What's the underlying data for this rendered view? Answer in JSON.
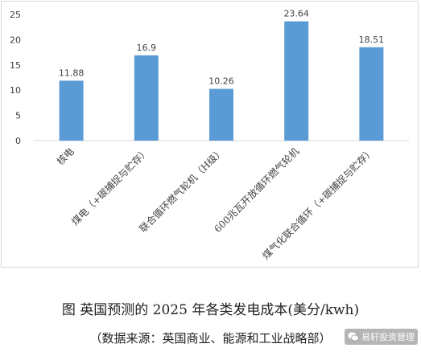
{
  "chart_data": {
    "type": "bar",
    "categories": [
      "核电",
      "煤电（+碳捕捉与贮存）",
      "联合循环燃气轮机（H级）",
      "600兆瓦开放循环燃气轮机",
      "煤气化联合循环（+碳捕捉与贮存）"
    ],
    "values": [
      11.88,
      16.9,
      10.26,
      23.64,
      18.51
    ],
    "value_labels": [
      "11.88",
      "16.9",
      "10.26",
      "23.64",
      "18.51"
    ],
    "ylim": [
      0,
      25
    ],
    "yticks": [
      0,
      5,
      10,
      15,
      20,
      25
    ],
    "grid": false,
    "bar_color": "#5b9bd5",
    "axis_color": "#d9d9d9",
    "text_color": "#404040"
  },
  "caption": {
    "title": "图  英国预测的 2025 年各类发电成本(美分/kwh)",
    "source": "（数据来源：英国商业、能源和工业战略部）"
  },
  "watermark": {
    "text": "易轩投资管理",
    "icon": "wechat-icon"
  }
}
